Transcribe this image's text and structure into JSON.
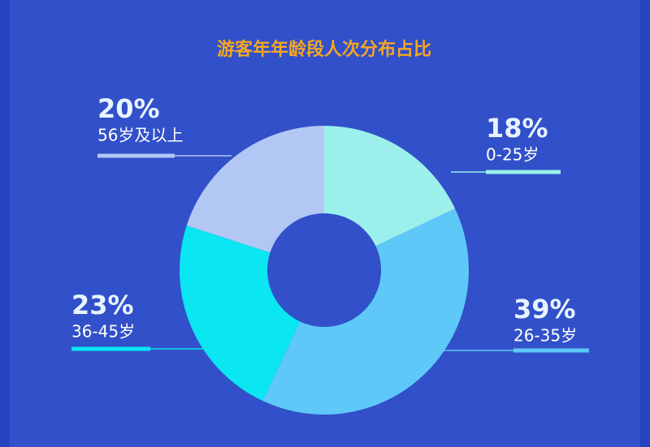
{
  "chart_data": {
    "type": "pie",
    "title": "游客年年龄段人次分布占比",
    "categories": [
      "0-25岁",
      "26-35岁",
      "36-45岁",
      "56岁及以上"
    ],
    "values": [
      18,
      39,
      23,
      20
    ],
    "value_labels": [
      "18%",
      "39%",
      "23%",
      "20%"
    ],
    "colors": [
      "#9cf0ec",
      "#5ec8f8",
      "#0ae6f2",
      "#b3c7f5"
    ]
  }
}
